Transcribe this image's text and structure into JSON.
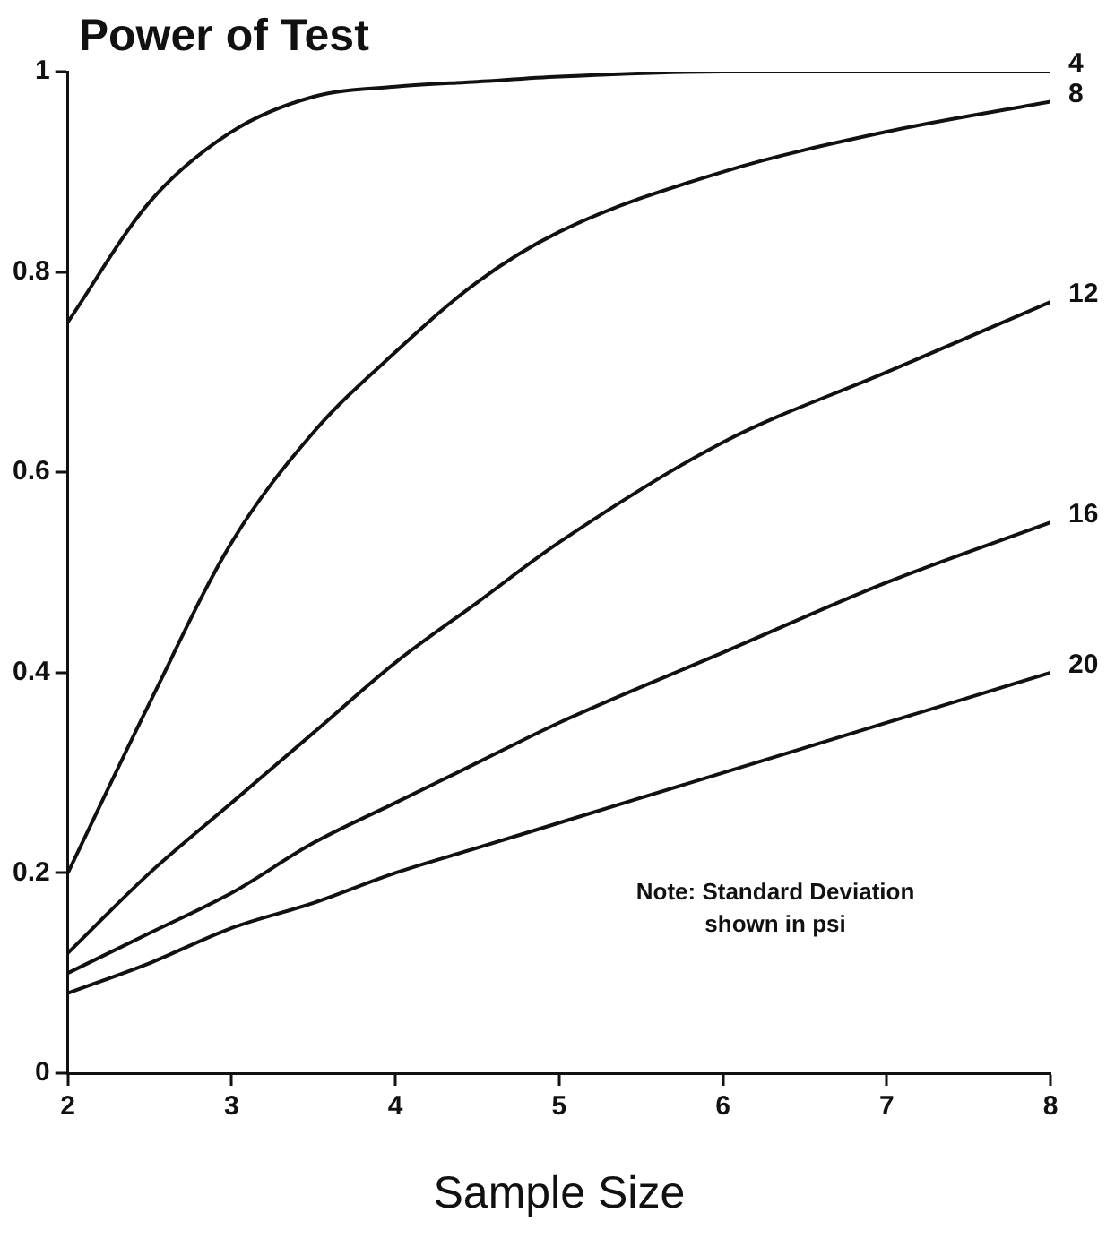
{
  "chart_data": {
    "type": "line",
    "title": "Power of Test",
    "xlabel": "Sample Size",
    "x": [
      2,
      2.5,
      3,
      3.5,
      4,
      4.5,
      5,
      6,
      7,
      8
    ],
    "series": [
      {
        "name": "4",
        "color": "#111111",
        "values": [
          0.75,
          0.87,
          0.94,
          0.975,
          0.985,
          0.99,
          0.995,
          1,
          1,
          1
        ]
      },
      {
        "name": "8",
        "color": "#111111",
        "values": [
          0.2,
          0.37,
          0.53,
          0.64,
          0.72,
          0.79,
          0.84,
          0.9,
          0.94,
          0.97
        ]
      },
      {
        "name": "12",
        "color": "#111111",
        "values": [
          0.12,
          0.2,
          0.27,
          0.34,
          0.41,
          0.47,
          0.53,
          0.63,
          0.7,
          0.77
        ]
      },
      {
        "name": "16",
        "color": "#111111",
        "values": [
          0.1,
          0.14,
          0.18,
          0.23,
          0.27,
          0.31,
          0.35,
          0.42,
          0.49,
          0.55
        ]
      },
      {
        "name": "20",
        "color": "#111111",
        "values": [
          0.08,
          0.11,
          0.145,
          0.17,
          0.2,
          0.225,
          0.25,
          0.3,
          0.35,
          0.4
        ]
      }
    ],
    "xlim": [
      2,
      8
    ],
    "xticks": [
      2,
      3,
      4,
      5,
      6,
      7,
      8
    ],
    "ylim": [
      0,
      1
    ],
    "yticks": [
      0,
      0.2,
      0.4,
      0.6,
      0.8,
      1
    ],
    "grid": false,
    "legend": false,
    "marker": "none",
    "line_style": "solid",
    "annotations": [
      "Note: Standard Deviation\nshown in psi"
    ]
  }
}
